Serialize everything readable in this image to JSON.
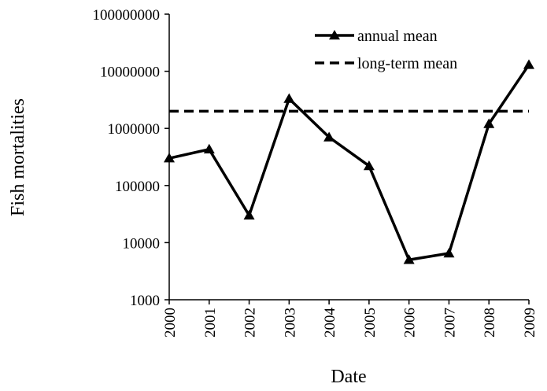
{
  "chart_data": {
    "type": "line",
    "x_label": "Date",
    "y_label": "Fish mortalities",
    "categories": [
      "2000",
      "2001",
      "2002",
      "2003",
      "2004",
      "2005",
      "2006",
      "2007",
      "2008",
      "2009"
    ],
    "series": [
      {
        "name": "annual mean",
        "color": "#000000",
        "marker": "triangle",
        "dashed": false,
        "values": [
          300000,
          430000,
          30000,
          3300000,
          700000,
          220000,
          5000,
          6500,
          1200000,
          13000000
        ]
      },
      {
        "name": "long-term mean",
        "color": "#000000",
        "marker": "none",
        "dashed": true,
        "values": [
          2000000,
          2000000,
          2000000,
          2000000,
          2000000,
          2000000,
          2000000,
          2000000,
          2000000,
          2000000
        ]
      }
    ],
    "log_y": true,
    "ylim": [
      1000,
      100000000
    ],
    "yticks": [
      1000,
      10000,
      100000,
      1000000,
      10000000,
      100000000
    ],
    "grid": false,
    "legend": "upper right"
  }
}
